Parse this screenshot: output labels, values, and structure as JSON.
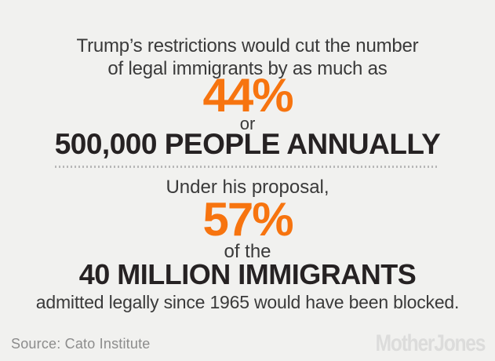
{
  "colors": {
    "background": "#f1f1ef",
    "text_dark": "#3a3a3a",
    "text_black": "#262223",
    "accent_orange": "#f7740f",
    "divider_gray": "#b8b8b8",
    "source_gray": "#8c8c8c",
    "logo_gray": "#dcdcdb"
  },
  "top_section": {
    "intro_line1": "Trump’s restrictions would cut the number",
    "intro_line2": "of legal immigrants by as much as",
    "big_stat": "44%",
    "connector": "or",
    "stat_detail": "500,000 PEOPLE ANNUALLY"
  },
  "bottom_section": {
    "intro": "Under his proposal,",
    "big_stat": "57%",
    "connector": "of the",
    "stat_detail": "40 MILLION IMMIGRANTS",
    "caption": "admitted legally since 1965 would have been blocked."
  },
  "footer": {
    "source": "Source: Cato Institute",
    "logo": "MotherJones"
  },
  "chart_data": {
    "type": "table",
    "title": "Trump’s restrictions would cut the number of legal immigrants by as much as",
    "values": [
      {
        "label": "Cut in the number of legal immigrants",
        "value": "44%",
        "equivalent": "500,000 people annually"
      },
      {
        "label": "Share of the 40 million immigrants admitted legally since 1965 that would have been blocked under his proposal",
        "value": "57%"
      }
    ],
    "source": "Cato Institute",
    "legend_position": "none",
    "grid": false
  }
}
